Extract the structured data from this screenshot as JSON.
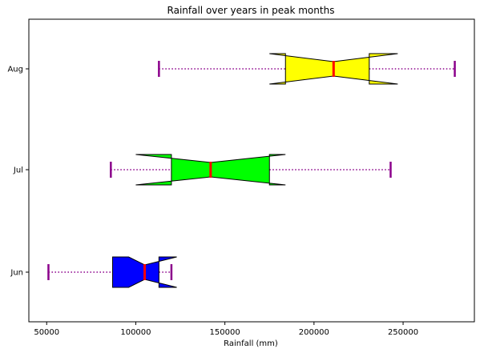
{
  "chart_data": {
    "type": "boxplot",
    "orientation": "horizontal",
    "notched": true,
    "title": "Rainfall over years in peak months",
    "xlabel": "Rainfall (mm)",
    "ylabel": "",
    "xlim": [
      40000,
      290000
    ],
    "xticks": [
      50000,
      100000,
      150000,
      200000,
      250000
    ],
    "xtick_labels": [
      "50000",
      "100000",
      "150000",
      "200000",
      "250000"
    ],
    "categories": [
      "Jun",
      "Jul",
      "Aug"
    ],
    "boxes": [
      {
        "label": "Jun",
        "whisker_low": 51000,
        "q1": 87000,
        "median": 105000,
        "q3": 113000,
        "whisker_high": 120000,
        "notch_low": 96000,
        "notch_high": 123000,
        "color": "#0000ff"
      },
      {
        "label": "Jul",
        "whisker_low": 86000,
        "q1": 120000,
        "median": 142000,
        "q3": 175000,
        "whisker_high": 243000,
        "notch_low": 100000,
        "notch_high": 184000,
        "color": "#00ff00"
      },
      {
        "label": "Aug",
        "whisker_low": 113000,
        "q1": 184000,
        "median": 211000,
        "q3": 231000,
        "whisker_high": 279000,
        "notch_low": 175000,
        "notch_high": 247000,
        "color": "#ffff00"
      }
    ],
    "median_color": "#ff0000",
    "whisker_color": "#8b008b",
    "grid": false
  }
}
